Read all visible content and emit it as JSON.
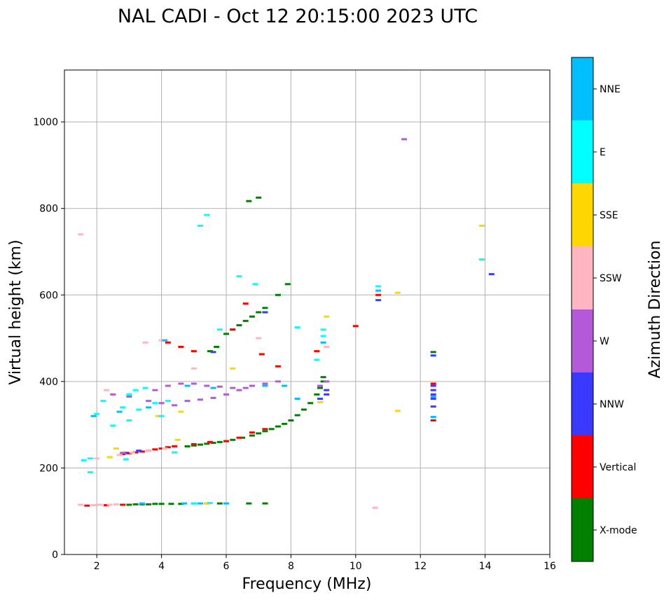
{
  "chart_data": {
    "type": "scatter",
    "title": "NAL CADI - Oct 12 20:15:00 2023 UTC",
    "xlabel": "Frequency (MHz)",
    "ylabel": "Virtual height (km)",
    "xlim": [
      1,
      16
    ],
    "ylim": [
      0,
      1120
    ],
    "xticks": [
      2,
      4,
      6,
      8,
      10,
      12,
      14,
      16
    ],
    "yticks": [
      0,
      200,
      400,
      600,
      800,
      1000
    ],
    "grid": true,
    "colorbar": {
      "title": "Azimuth Direction",
      "categories": [
        {
          "label": "X-mode",
          "color": "#008000"
        },
        {
          "label": "Vertical",
          "color": "#ff0000"
        },
        {
          "label": "NNW",
          "color": "#3a3aff"
        },
        {
          "label": "W",
          "color": "#b45ad8"
        },
        {
          "label": "SSW",
          "color": "#ffb6c1"
        },
        {
          "label": "SSE",
          "color": "#ffd700"
        },
        {
          "label": "E",
          "color": "#00ffff"
        },
        {
          "label": "NNE",
          "color": "#00bfff"
        }
      ]
    },
    "series": [
      {
        "name": "X-mode",
        "points": [
          [
            3.0,
            115
          ],
          [
            3.2,
            116
          ],
          [
            3.4,
            116
          ],
          [
            3.6,
            116
          ],
          [
            3.8,
            117
          ],
          [
            4.0,
            117
          ],
          [
            4.3,
            117
          ],
          [
            4.6,
            117
          ],
          [
            5.0,
            118
          ],
          [
            5.4,
            118
          ],
          [
            5.8,
            118
          ],
          [
            6.7,
            118
          ],
          [
            7.2,
            118
          ],
          [
            4.8,
            250
          ],
          [
            5.0,
            252
          ],
          [
            5.2,
            254
          ],
          [
            5.4,
            256
          ],
          [
            5.6,
            258
          ],
          [
            5.8,
            260
          ],
          [
            6.0,
            262
          ],
          [
            6.2,
            265
          ],
          [
            6.5,
            270
          ],
          [
            6.8,
            275
          ],
          [
            7.0,
            280
          ],
          [
            7.2,
            285
          ],
          [
            7.4,
            290
          ],
          [
            7.6,
            296
          ],
          [
            7.8,
            302
          ],
          [
            8.0,
            310
          ],
          [
            8.2,
            322
          ],
          [
            8.4,
            335
          ],
          [
            8.6,
            350
          ],
          [
            8.8,
            370
          ],
          [
            8.9,
            385
          ],
          [
            9.0,
            400
          ],
          [
            9.0,
            410
          ],
          [
            6.0,
            510
          ],
          [
            6.2,
            520
          ],
          [
            6.4,
            530
          ],
          [
            6.6,
            540
          ],
          [
            6.8,
            550
          ],
          [
            7.0,
            560
          ],
          [
            7.2,
            570
          ],
          [
            7.6,
            600
          ],
          [
            7.9,
            625
          ],
          [
            5.5,
            470
          ],
          [
            5.7,
            480
          ],
          [
            6.7,
            817
          ],
          [
            7.0,
            825
          ],
          [
            12.4,
            468
          ]
        ]
      },
      {
        "name": "Vertical",
        "points": [
          [
            1.7,
            113
          ],
          [
            2.3,
            114
          ],
          [
            2.8,
            115
          ],
          [
            2.8,
            232
          ],
          [
            3.0,
            234
          ],
          [
            3.2,
            236
          ],
          [
            3.4,
            238
          ],
          [
            3.6,
            240
          ],
          [
            3.8,
            243
          ],
          [
            4.0,
            245
          ],
          [
            4.2,
            248
          ],
          [
            4.4,
            250
          ],
          [
            5.0,
            255
          ],
          [
            5.5,
            260
          ],
          [
            6.0,
            262
          ],
          [
            6.4,
            270
          ],
          [
            6.8,
            282
          ],
          [
            7.2,
            290
          ],
          [
            6.2,
            520
          ],
          [
            6.6,
            580
          ],
          [
            7.1,
            463
          ],
          [
            7.6,
            435
          ],
          [
            8.8,
            470
          ],
          [
            10.0,
            528
          ],
          [
            12.4,
            310
          ],
          [
            12.4,
            395
          ],
          [
            10.7,
            600
          ],
          [
            4.2,
            490
          ],
          [
            4.6,
            480
          ],
          [
            5.0,
            470
          ]
        ]
      },
      {
        "name": "NNW",
        "points": [
          [
            2.9,
            235
          ],
          [
            3.3,
            240
          ],
          [
            12.4,
            460
          ],
          [
            12.4,
            390
          ],
          [
            12.4,
            380
          ],
          [
            12.4,
            370
          ],
          [
            12.4,
            360
          ],
          [
            12.4,
            342
          ],
          [
            14.2,
            648
          ],
          [
            10.7,
            588
          ],
          [
            9.1,
            380
          ],
          [
            9.1,
            370
          ],
          [
            8.9,
            360
          ],
          [
            7.2,
            560
          ],
          [
            5.6,
            468
          ]
        ]
      },
      {
        "name": "W",
        "points": [
          [
            2.5,
            370
          ],
          [
            3.0,
            365
          ],
          [
            3.6,
            355
          ],
          [
            4.0,
            350
          ],
          [
            4.4,
            345
          ],
          [
            4.8,
            355
          ],
          [
            5.2,
            358
          ],
          [
            5.6,
            362
          ],
          [
            6.0,
            370
          ],
          [
            6.4,
            380
          ],
          [
            6.6,
            385
          ],
          [
            6.8,
            390
          ],
          [
            7.2,
            395
          ],
          [
            7.6,
            400
          ],
          [
            3.8,
            380
          ],
          [
            4.2,
            390
          ],
          [
            4.6,
            395
          ],
          [
            5.0,
            395
          ],
          [
            5.4,
            390
          ],
          [
            5.8,
            388
          ],
          [
            6.2,
            385
          ],
          [
            8.9,
            390
          ],
          [
            9.1,
            400
          ],
          [
            11.5,
            960
          ],
          [
            2.8,
            235
          ]
        ]
      },
      {
        "name": "SSW",
        "points": [
          [
            1.5,
            740
          ],
          [
            1.5,
            115
          ],
          [
            1.9,
            114
          ],
          [
            2.1,
            115
          ],
          [
            2.4,
            115
          ],
          [
            2.6,
            116
          ],
          [
            2.0,
            222
          ],
          [
            2.4,
            225
          ],
          [
            2.7,
            230
          ],
          [
            3.1,
            235
          ],
          [
            3.6,
            240
          ],
          [
            4.1,
            245
          ],
          [
            3.5,
            490
          ],
          [
            4.0,
            495
          ],
          [
            9.1,
            480
          ],
          [
            10.6,
            108
          ],
          [
            2.3,
            380
          ],
          [
            5.0,
            430
          ],
          [
            7.0,
            500
          ]
        ]
      },
      {
        "name": "SSE",
        "points": [
          [
            2.4,
            225
          ],
          [
            2.6,
            245
          ],
          [
            4.5,
            265
          ],
          [
            5.4,
            118
          ],
          [
            6.2,
            430
          ],
          [
            8.9,
            352
          ],
          [
            9.1,
            550
          ],
          [
            11.3,
            332
          ],
          [
            11.3,
            605
          ],
          [
            13.9,
            760
          ],
          [
            4.6,
            330
          ],
          [
            3.9,
            320
          ]
        ]
      },
      {
        "name": "E",
        "points": [
          [
            1.6,
            218
          ],
          [
            1.8,
            190
          ],
          [
            2.0,
            325
          ],
          [
            2.2,
            355
          ],
          [
            2.5,
            298
          ],
          [
            2.8,
            340
          ],
          [
            3.0,
            310
          ],
          [
            3.3,
            335
          ],
          [
            3.5,
            385
          ],
          [
            3.8,
            350
          ],
          [
            4.0,
            320
          ],
          [
            4.2,
            355
          ],
          [
            3.0,
            370
          ],
          [
            2.9,
            220
          ],
          [
            1.8,
            222
          ],
          [
            5.2,
            760
          ],
          [
            5.4,
            785
          ],
          [
            5.8,
            520
          ],
          [
            6.4,
            643
          ],
          [
            6.9,
            625
          ],
          [
            8.2,
            525
          ],
          [
            8.8,
            450
          ],
          [
            9.0,
            520
          ],
          [
            9.0,
            505
          ],
          [
            10.7,
            620
          ],
          [
            13.9,
            682
          ],
          [
            3.2,
            380
          ],
          [
            4.4,
            236
          ],
          [
            5.0,
            118
          ],
          [
            5.5,
            119
          ]
        ]
      },
      {
        "name": "NNE",
        "points": [
          [
            1.9,
            320
          ],
          [
            2.7,
            330
          ],
          [
            3.6,
            340
          ],
          [
            4.1,
            495
          ],
          [
            4.8,
            390
          ],
          [
            5.6,
            385
          ],
          [
            7.8,
            390
          ],
          [
            8.2,
            360
          ],
          [
            9.0,
            490
          ],
          [
            12.4,
            318
          ],
          [
            12.4,
            365
          ],
          [
            3.4,
            118
          ],
          [
            4.7,
            118
          ],
          [
            5.2,
            118
          ],
          [
            6.0,
            118
          ],
          [
            10.7,
            610
          ],
          [
            7.2,
            390
          ]
        ]
      }
    ]
  }
}
